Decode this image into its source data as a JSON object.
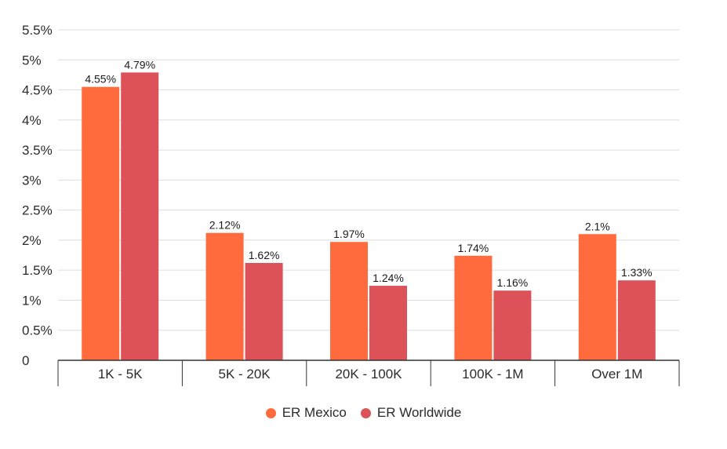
{
  "chart_data": {
    "type": "bar",
    "title": "",
    "xlabel": "",
    "ylabel": "",
    "categories": [
      "1K - 5K",
      "5K - 20K",
      "20K - 100K",
      "100K - 1M",
      "Over 1M"
    ],
    "series": [
      {
        "name": "ER Mexico",
        "values": [
          4.55,
          2.12,
          1.97,
          1.74,
          2.1
        ],
        "labels": [
          "4.55%",
          "2.12%",
          "1.97%",
          "1.74%",
          "2.1%"
        ],
        "color": "#ff6b3d"
      },
      {
        "name": "ER Worldwide",
        "values": [
          4.79,
          1.62,
          1.24,
          1.16,
          1.33
        ],
        "labels": [
          "4.79%",
          "1.62%",
          "1.24%",
          "1.16%",
          "1.33%"
        ],
        "color": "#dc5258"
      }
    ],
    "ylim": [
      0,
      5.5
    ],
    "yticks": [
      "0",
      "0.5%",
      "1%",
      "1.5%",
      "2%",
      "2.5%",
      "3%",
      "3.5%",
      "4%",
      "4.5%",
      "5%",
      "5.5%"
    ],
    "grid": true,
    "legend_position": "bottom"
  }
}
